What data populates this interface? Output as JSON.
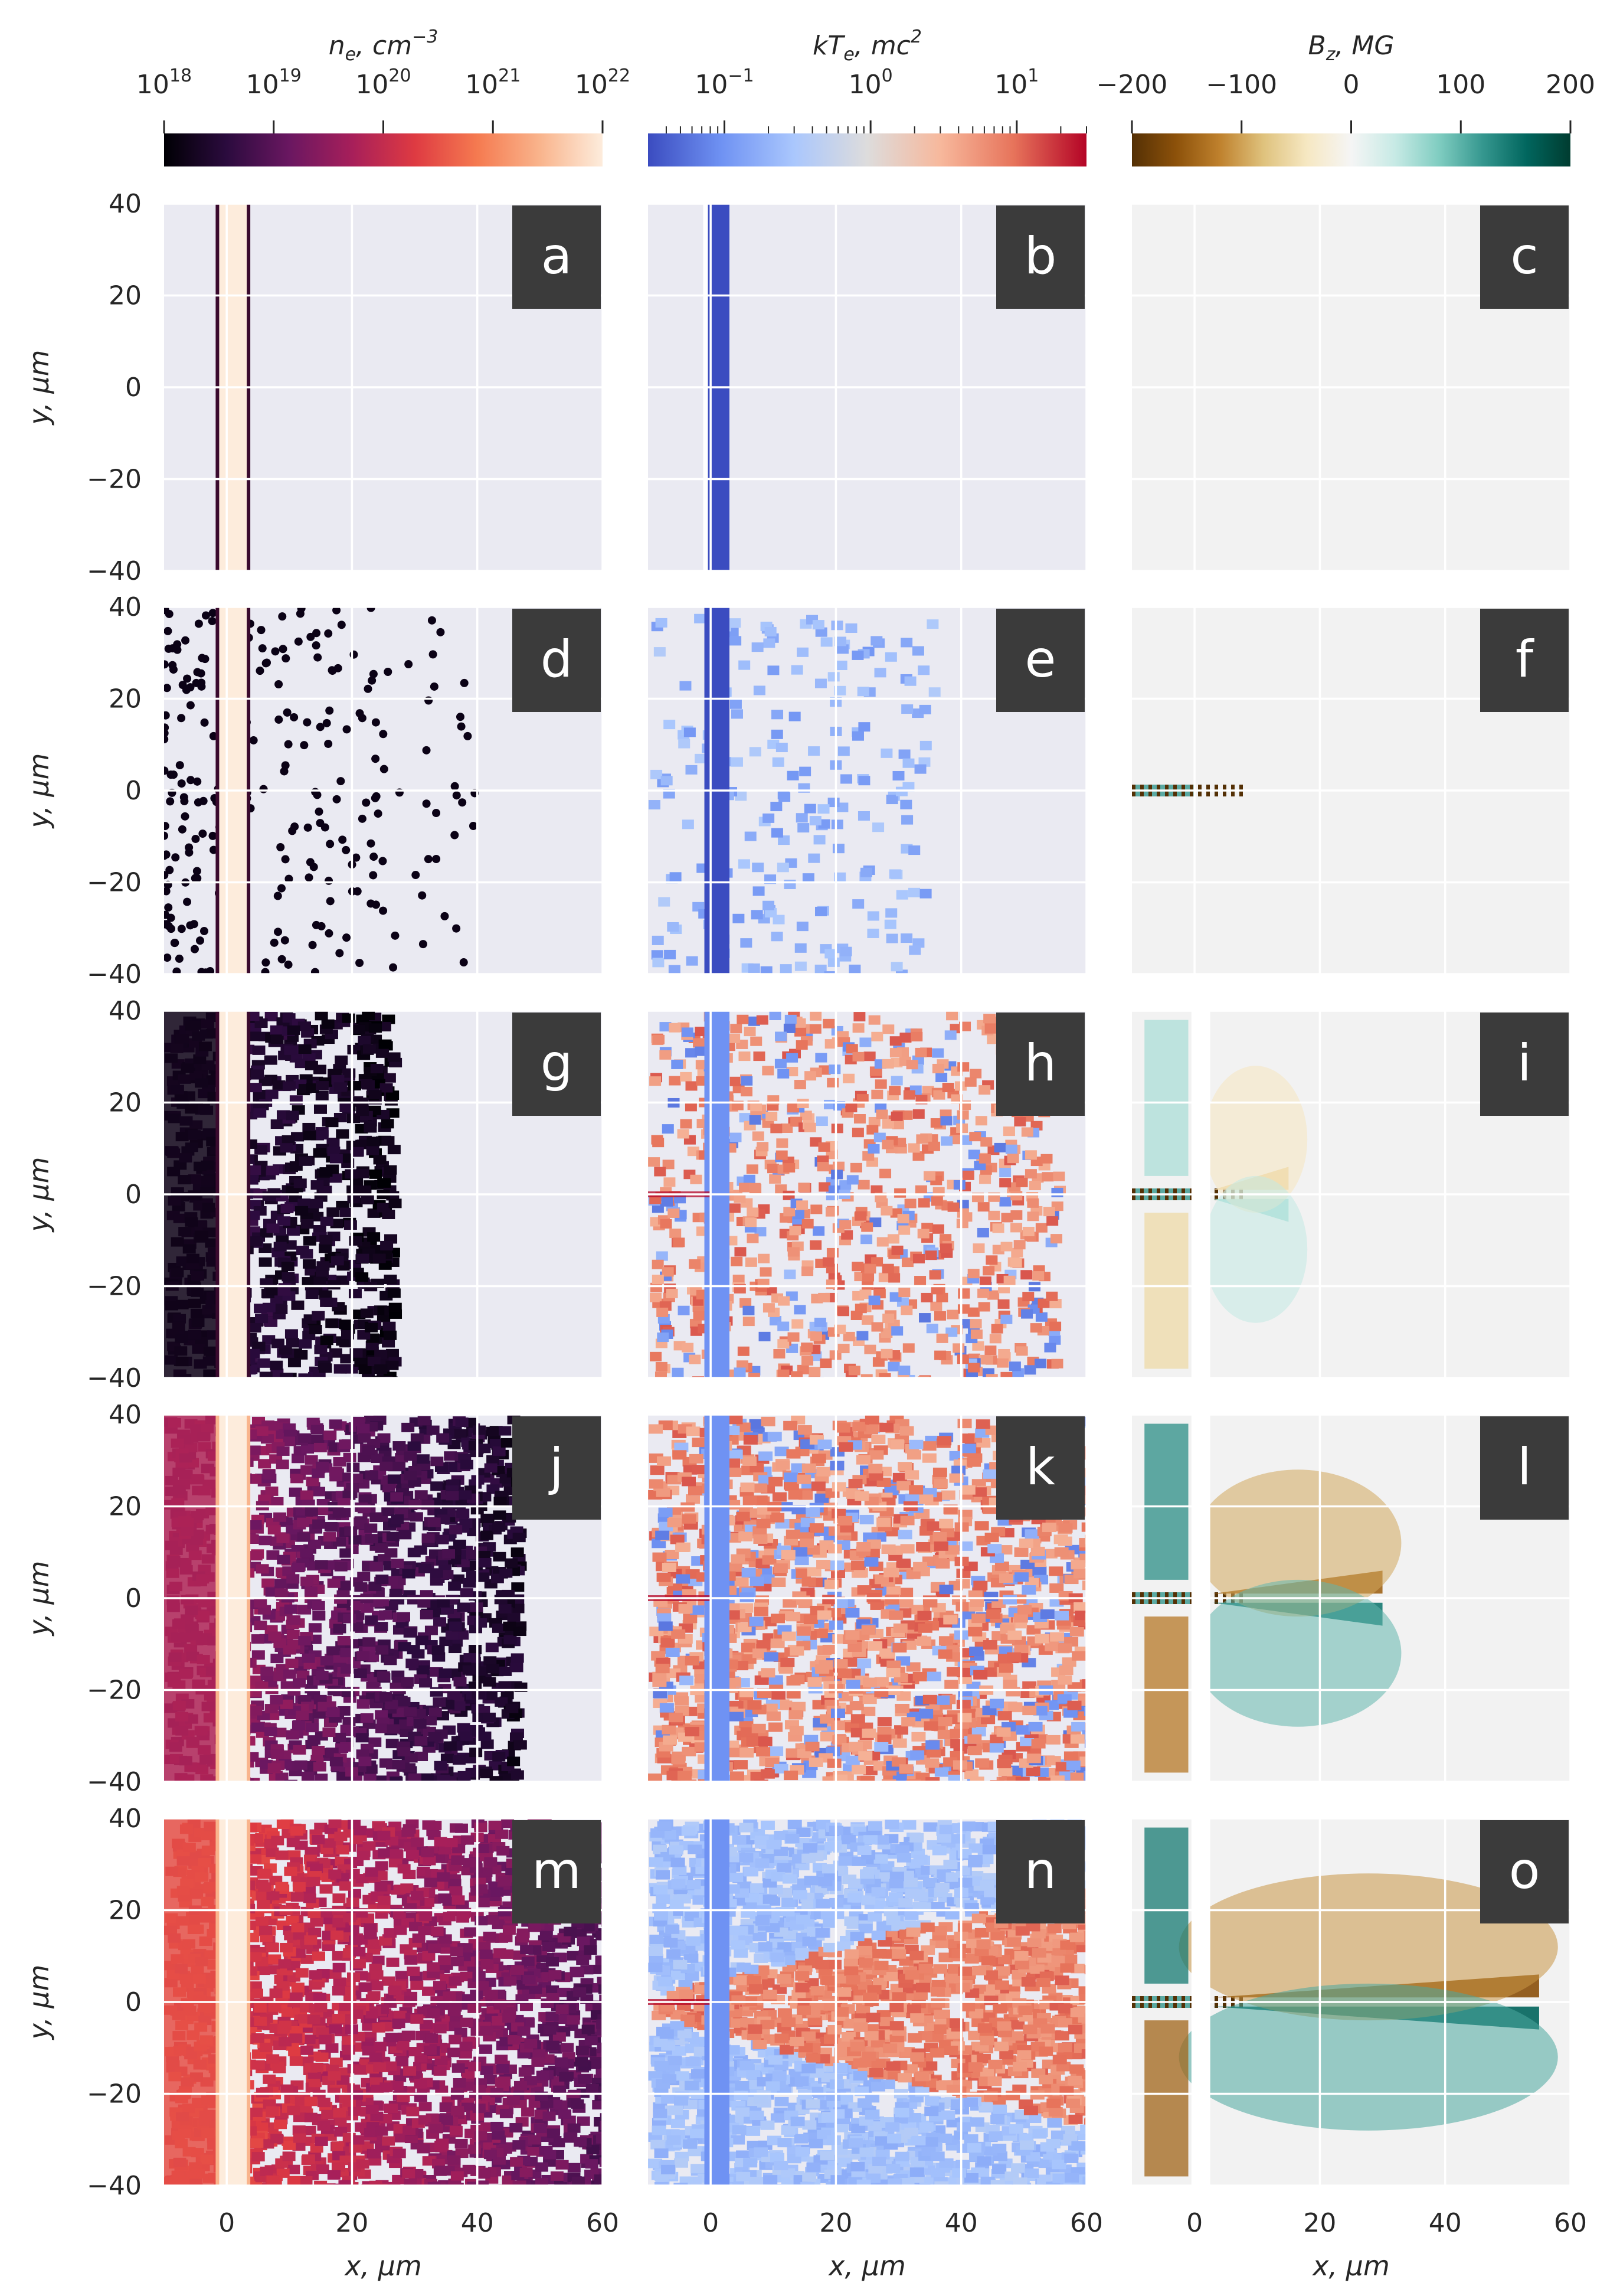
{
  "chart_data": {
    "type": "heatmap",
    "title": "",
    "xlabel": "x,  μm",
    "ylabel": "y,  μm",
    "xlim": [
      -10,
      60
    ],
    "ylim": [
      -40,
      40
    ],
    "xticks": [
      0,
      20,
      40,
      60
    ],
    "yticks": [
      -40,
      -20,
      0,
      20,
      40
    ],
    "grid": true,
    "colorbars": [
      {
        "label": "n_e, cm^-3",
        "label_main": "n",
        "label_sub": "e",
        "label_rest": ", cm",
        "label_sup": "−3",
        "scale": "log",
        "range": [
          1e+18,
          1e+22
        ],
        "ticks": [
          {
            "base": "10",
            "exp": "18"
          },
          {
            "base": "10",
            "exp": "19"
          },
          {
            "base": "10",
            "exp": "20"
          },
          {
            "base": "10",
            "exp": "21"
          },
          {
            "base": "10",
            "exp": "22"
          }
        ],
        "colormap": [
          "#000004",
          "#2b0b3e",
          "#6a1761",
          "#a71f5a",
          "#de3a42",
          "#f57a50",
          "#f9b48c",
          "#fdecdc"
        ]
      },
      {
        "label": "kT_e, mc^2",
        "label_main": "kT",
        "label_sub": "e",
        "label_rest": ", mc",
        "label_sup": "2",
        "scale": "log",
        "range": [
          0.03,
          30
        ],
        "ticks": [
          {
            "base": "10",
            "exp": "−1"
          },
          {
            "base": "10",
            "exp": "0"
          },
          {
            "base": "10",
            "exp": "1"
          }
        ],
        "colormap": [
          "#3b4cc0",
          "#6f92f3",
          "#aac7fd",
          "#dddcdc",
          "#f7b89c",
          "#e7745b",
          "#b40426"
        ]
      },
      {
        "label": "B_z, MG",
        "label_main": "B",
        "label_sub": "z",
        "label_rest": ", MG",
        "label_sup": "",
        "scale": "linear",
        "range": [
          -200,
          200
        ],
        "ticks": [
          {
            "base": "−200",
            "exp": ""
          },
          {
            "base": "−100",
            "exp": ""
          },
          {
            "base": "0",
            "exp": ""
          },
          {
            "base": "100",
            "exp": ""
          },
          {
            "base": "200",
            "exp": ""
          }
        ],
        "colormap": [
          "#543005",
          "#8c510a",
          "#bf812d",
          "#dfc27d",
          "#f6e8c3",
          "#f5f5f5",
          "#c7eae5",
          "#80cdc1",
          "#35978f",
          "#01665e",
          "#003c30"
        ]
      }
    ],
    "panels": [
      {
        "label": "a",
        "row": 0,
        "col": 0,
        "quantity": "n_e"
      },
      {
        "label": "b",
        "row": 0,
        "col": 1,
        "quantity": "kT_e"
      },
      {
        "label": "c",
        "row": 0,
        "col": 2,
        "quantity": "B_z"
      },
      {
        "label": "d",
        "row": 1,
        "col": 0,
        "quantity": "n_e"
      },
      {
        "label": "e",
        "row": 1,
        "col": 1,
        "quantity": "kT_e"
      },
      {
        "label": "f",
        "row": 1,
        "col": 2,
        "quantity": "B_z"
      },
      {
        "label": "g",
        "row": 2,
        "col": 0,
        "quantity": "n_e"
      },
      {
        "label": "h",
        "row": 2,
        "col": 1,
        "quantity": "kT_e"
      },
      {
        "label": "i",
        "row": 2,
        "col": 2,
        "quantity": "B_z"
      },
      {
        "label": "j",
        "row": 3,
        "col": 0,
        "quantity": "n_e"
      },
      {
        "label": "k",
        "row": 3,
        "col": 1,
        "quantity": "kT_e"
      },
      {
        "label": "l",
        "row": 3,
        "col": 2,
        "quantity": "B_z"
      },
      {
        "label": "m",
        "row": 4,
        "col": 0,
        "quantity": "n_e"
      },
      {
        "label": "n",
        "row": 4,
        "col": 1,
        "quantity": "kT_e"
      },
      {
        "label": "o",
        "row": 4,
        "col": 2,
        "quantity": "B_z"
      }
    ],
    "target": {
      "x_range": [
        -1,
        3
      ],
      "note": "dense foil near x = 0"
    }
  }
}
